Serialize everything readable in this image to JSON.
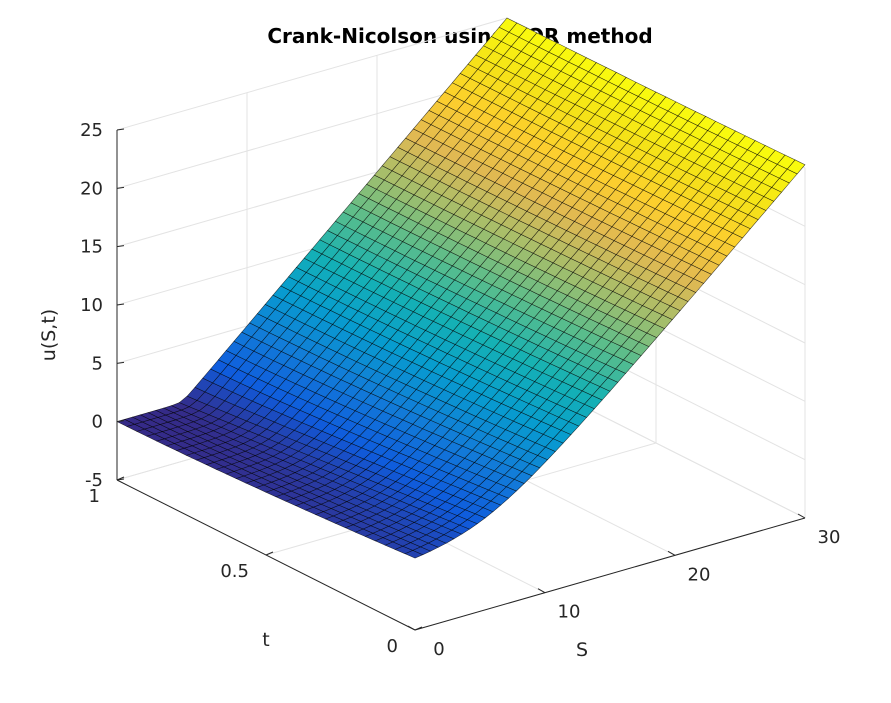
{
  "chart_data": {
    "type": "surface",
    "title": "Crank-Nicolson using SOR method",
    "xlabel": "S",
    "ylabel": "t",
    "zlabel": "u(S,t)",
    "xlim": [
      0,
      30
    ],
    "ylim": [
      0,
      1
    ],
    "zlim": [
      -5,
      25
    ],
    "xticks": [
      "0",
      "10",
      "20",
      "30"
    ],
    "yticks": [
      "0",
      "0.5",
      "1"
    ],
    "zticks": [
      "-5",
      "0",
      "5",
      "10",
      "15",
      "20",
      "25"
    ],
    "grid": true,
    "colormap": "parula",
    "strike": 5,
    "S_range": [
      0,
      30
    ],
    "t_range": [
      0,
      1
    ],
    "surface_samples": [
      {
        "S": 0,
        "t": 0,
        "u": 0
      },
      {
        "S": 5,
        "t": 1,
        "u": 0
      },
      {
        "S": 30,
        "t": 1,
        "u": 25
      },
      {
        "S": 30,
        "t": 0,
        "u": 25
      }
    ]
  }
}
